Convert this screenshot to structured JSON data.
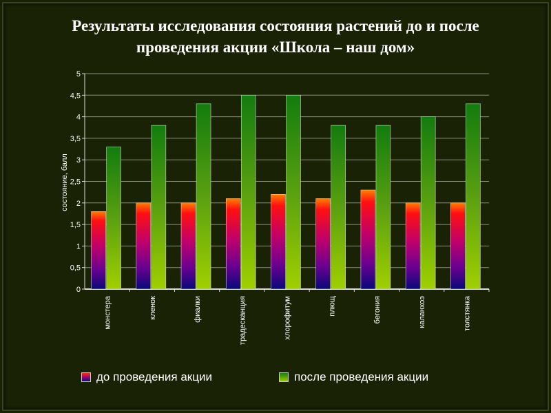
{
  "chart_data": {
    "type": "bar",
    "title": "Результаты исследования состояния растений до и после проведения акции «Школа – наш дом»",
    "title_lines": [
      "Результаты исследования состояния растений до и после",
      "проведения акции «Школа – наш дом»"
    ],
    "ylabel": "состояние, балл",
    "xlabel": "",
    "ylim": [
      0,
      5
    ],
    "yticks": [
      "0",
      "0,5",
      "1",
      "1,5",
      "2",
      "2,5",
      "3",
      "3,5",
      "4",
      "4,5",
      "5"
    ],
    "categories": [
      "монстера",
      "кленок",
      "фиалки",
      "традесканция",
      "хлорофитум",
      "плющ",
      "бегония",
      "каланхоэ",
      "толстянка"
    ],
    "series": [
      {
        "name": "до проведения акции",
        "values": [
          1.8,
          2,
          2,
          2.1,
          2.2,
          2.1,
          2.3,
          2,
          2
        ],
        "colors": [
          "#ff6a00",
          "#e0004a",
          "#a00070",
          "#10107a"
        ]
      },
      {
        "name": "после проведения акции",
        "values": [
          3.3,
          3.8,
          4.3,
          4.5,
          4.5,
          3.8,
          3.8,
          4,
          4.3
        ],
        "colors": [
          "#168010",
          "#9ccc00"
        ]
      }
    ],
    "grid": true,
    "legend": "bottom"
  }
}
